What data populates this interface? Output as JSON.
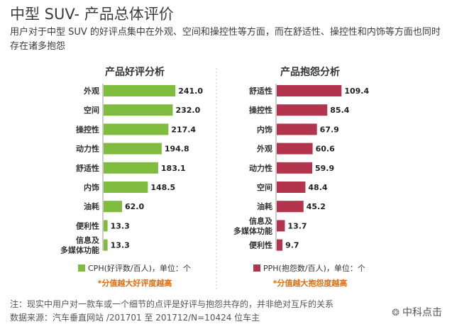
{
  "page": {
    "title": "中型 SUV- 产品总体评价",
    "subtitle": "用户对于中型 SUV 的好评点集中在外观、空间和操控性等方面，而在舒适性、操控性和内饰等方面也同时存在诸多抱怨",
    "note1": "注：现实中用户对一款车或一个细节的点评是好评与抱怨共存的，并非绝对互斥的关系",
    "note2": "数据来源：汽车垂直网站 /201701 至 201712/N=10424 位车主",
    "brand": "中科点击"
  },
  "colors": {
    "positive": "#7fbb3f",
    "negative": "#b3344d",
    "accent_text": "#e46c0a",
    "divider": "#cccccc"
  },
  "chart_data": [
    {
      "type": "bar",
      "orientation": "horizontal",
      "title": "产品好评分析",
      "categories": [
        "外观",
        "空间",
        "操控性",
        "动力性",
        "舒适性",
        "内饰",
        "油耗",
        "便利性",
        "信息及\n多媒体功能"
      ],
      "values": [
        241.0,
        232.0,
        217.4,
        194.8,
        183.1,
        148.5,
        62.0,
        13.3,
        13.3
      ],
      "value_labels": [
        "241.0",
        "232.0",
        "217.4",
        "194.8",
        "183.1",
        "148.5",
        "62.0",
        "13.3",
        "13.3"
      ],
      "legend": "CPH(好评数/百人)，单位：个",
      "note": "*分值越大好评度越高",
      "color": "#7fbb3f",
      "xlim": [
        0,
        250
      ]
    },
    {
      "type": "bar",
      "orientation": "horizontal",
      "title": "产品抱怨分析",
      "categories": [
        "舒适性",
        "操控性",
        "内饰",
        "外观",
        "动力性",
        "空间",
        "油耗",
        "信息及\n多媒体功能",
        "便利性"
      ],
      "values": [
        109.4,
        85.4,
        67.9,
        60.6,
        59.9,
        48.4,
        45.2,
        13.7,
        9.7
      ],
      "value_labels": [
        "109.4",
        "85.4",
        "67.9",
        "60.6",
        "59.9",
        "48.4",
        "45.2",
        "13.7",
        "9.7"
      ],
      "legend": "PPH(抱怨数/百人)，单位：个",
      "note": "*分值越大抱怨度越高",
      "color": "#b3344d",
      "xlim": [
        0,
        115
      ]
    }
  ]
}
